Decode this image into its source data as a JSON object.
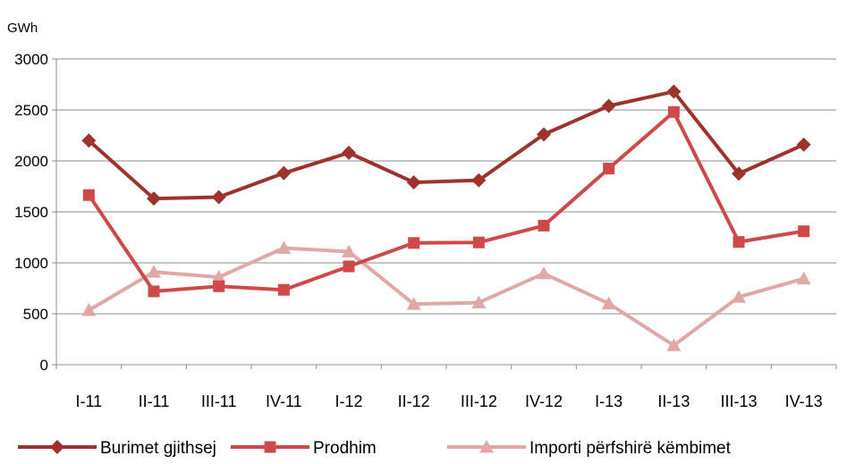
{
  "chart_data": {
    "type": "line",
    "unit_label": "GWh",
    "categories": [
      "I-11",
      "II-11",
      "III-11",
      "IV-11",
      "I-12",
      "II-12",
      "III-12",
      "IV-12",
      "I-13",
      "II-13",
      "III-13",
      "IV-13"
    ],
    "ylim": [
      0,
      3000
    ],
    "yticks": [
      "0",
      "500",
      "1000",
      "1500",
      "2000",
      "2500",
      "3000"
    ],
    "grid": true,
    "legend_position": "bottom",
    "series": [
      {
        "name": "Burimet gjithsej",
        "color": "#A0322D",
        "marker": "diamond",
        "values": [
          2200,
          1630,
          1645,
          1880,
          2080,
          1790,
          1810,
          2260,
          2540,
          2680,
          1875,
          2160
        ]
      },
      {
        "name": "Prodhim",
        "color": "#D0494A",
        "marker": "square",
        "values": [
          1665,
          720,
          770,
          735,
          965,
          1195,
          1200,
          1365,
          1925,
          2480,
          1205,
          1310
        ]
      },
      {
        "name": "Importi përfshirë këmbimet",
        "color": "#E0A8A6",
        "marker": "triangle",
        "values": [
          535,
          910,
          860,
          1145,
          1110,
          595,
          610,
          895,
          600,
          190,
          665,
          845
        ]
      }
    ]
  }
}
